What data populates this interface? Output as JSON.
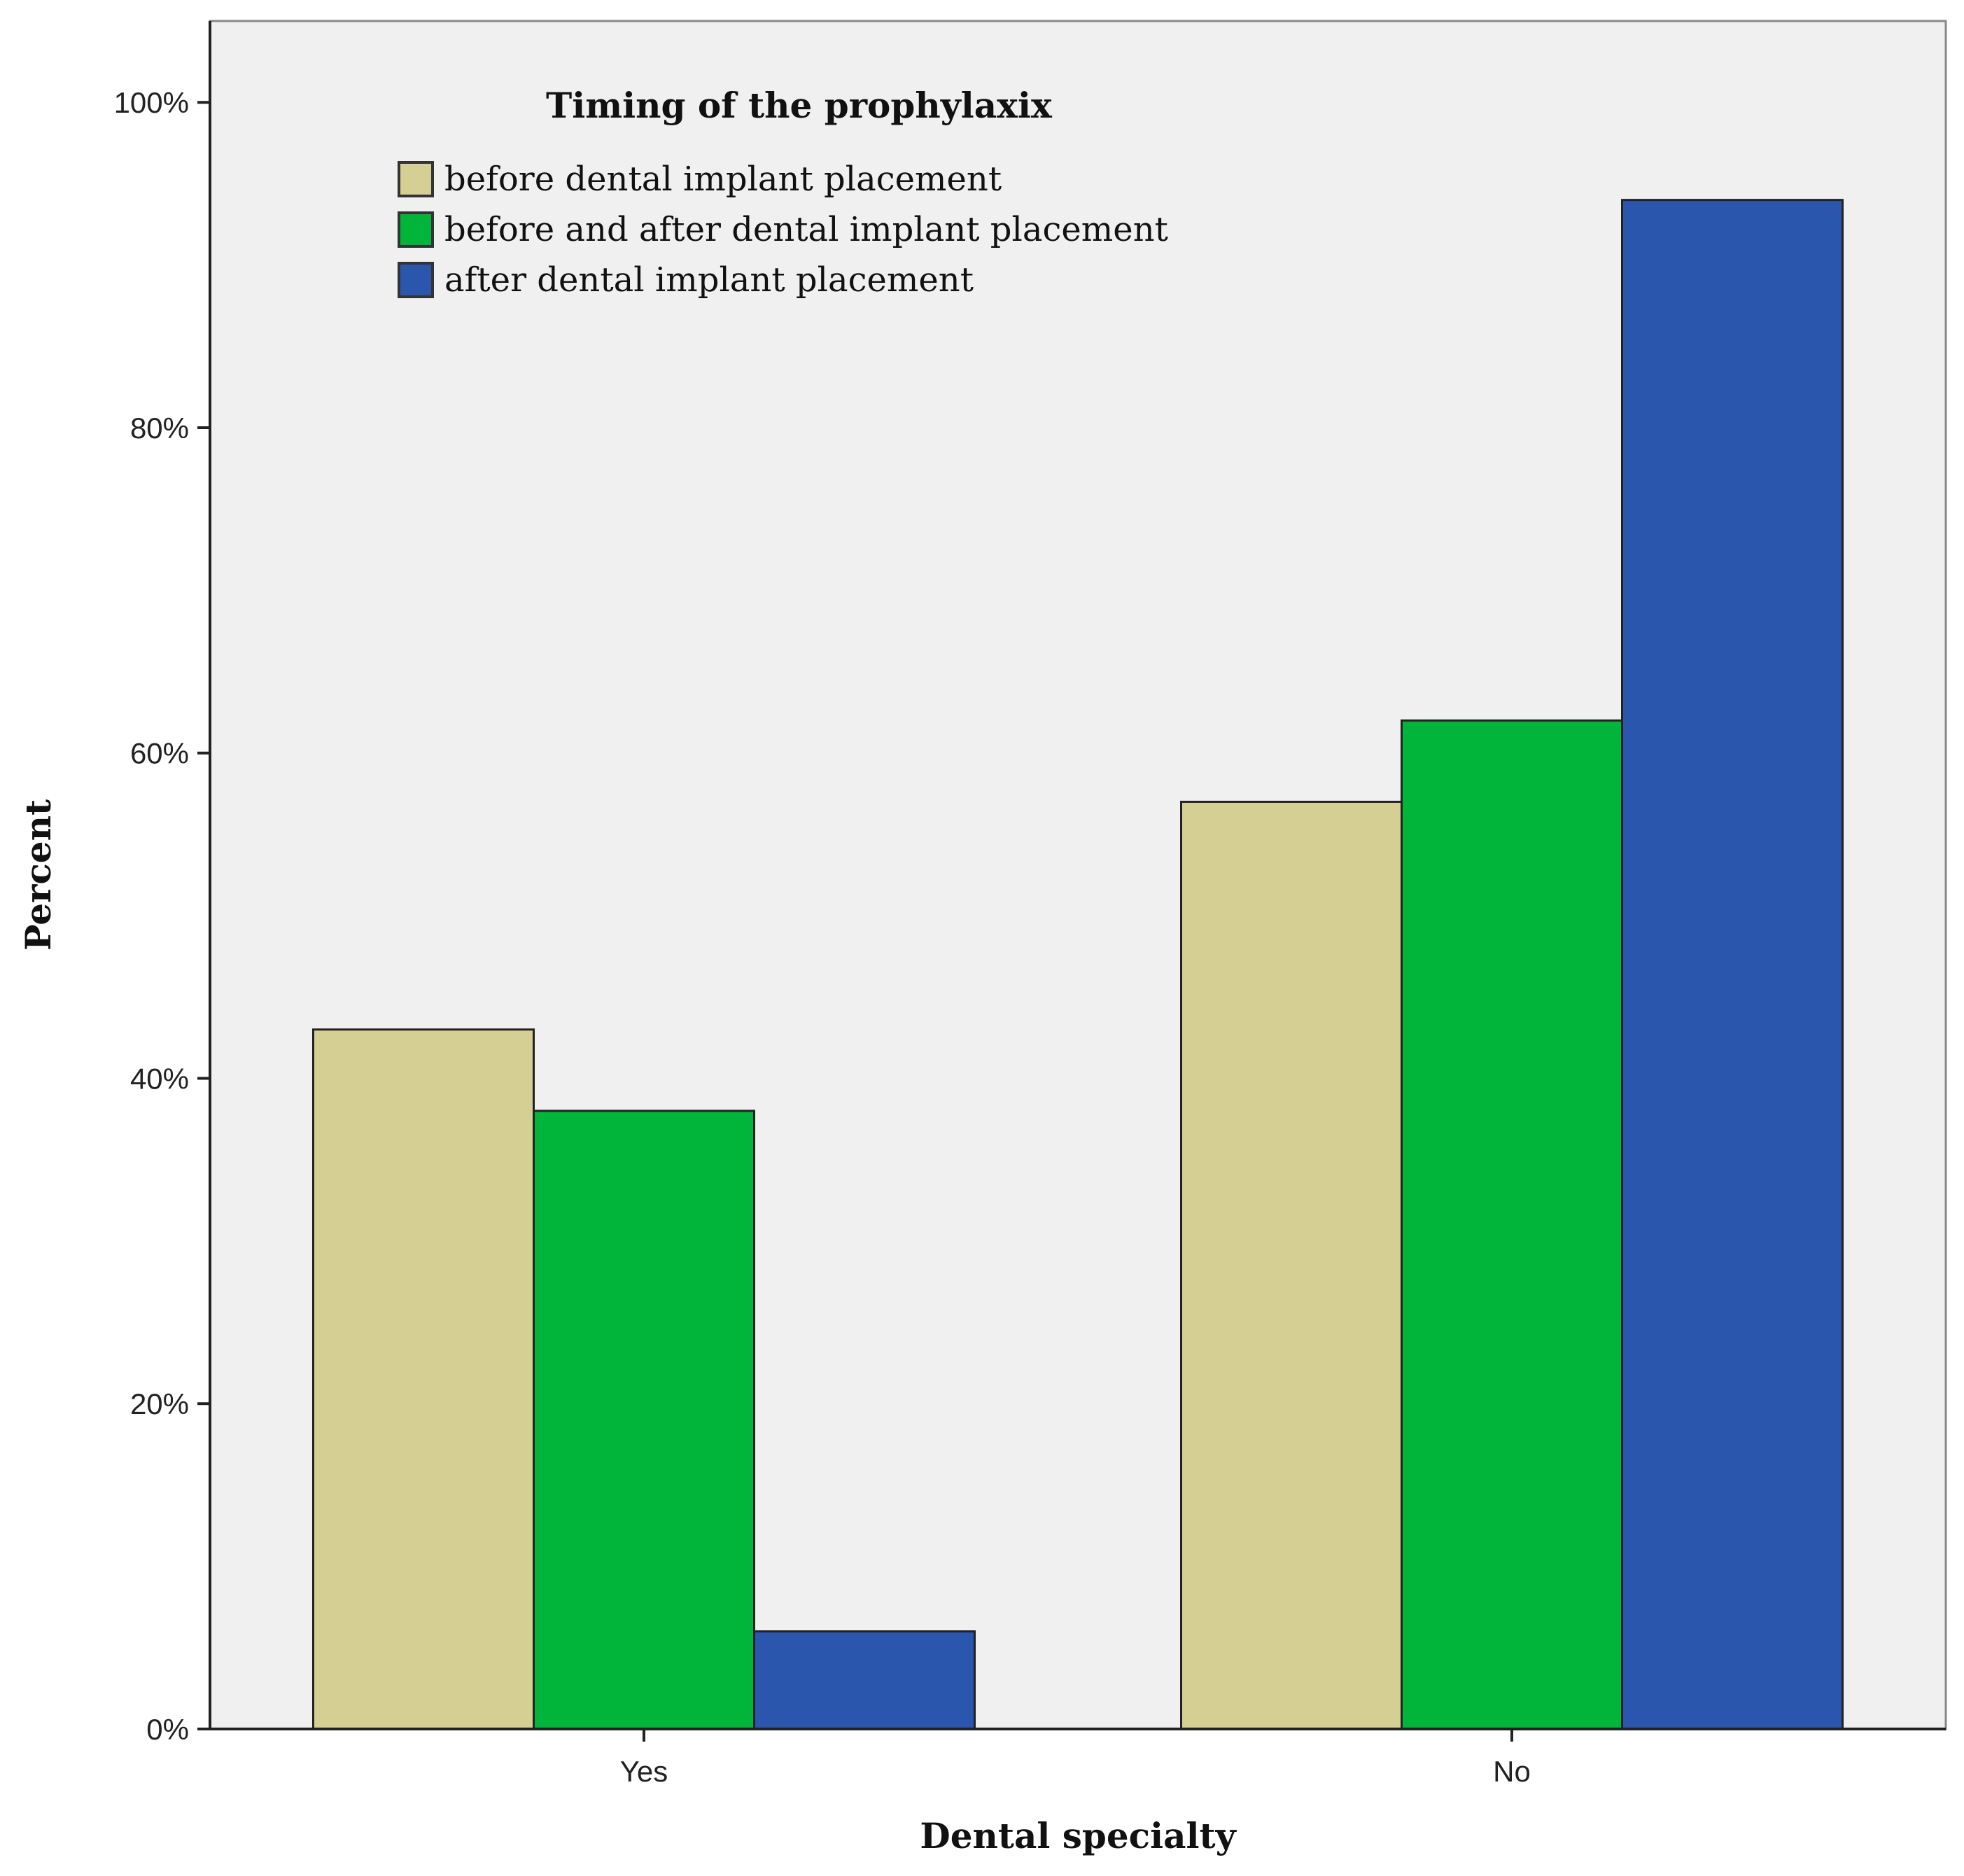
{
  "chart_data": {
    "type": "bar",
    "title": "",
    "xlabel": "Dental specialty",
    "ylabel": "Percent",
    "categories": [
      "Yes",
      "No"
    ],
    "ylim": [
      0,
      105
    ],
    "yticks": [
      0,
      20,
      40,
      60,
      80,
      100
    ],
    "ytick_labels": [
      "0%",
      "20%",
      "40%",
      "60%",
      "80%",
      "100%"
    ],
    "legend_title": "Timing of the prophylaxix",
    "legend_position": "top-left",
    "series": [
      {
        "name": "before dental implant placement",
        "color": "#d5cf94",
        "values": [
          43,
          57
        ]
      },
      {
        "name": "before and after dental implant placement",
        "color": "#00b53a",
        "values": [
          38,
          62
        ]
      },
      {
        "name": "after dental implant placement",
        "color": "#2b56ae",
        "values": [
          6,
          94
        ]
      }
    ]
  },
  "colors": {
    "plot_background": "#f0f0f0",
    "frame": "#333333"
  }
}
